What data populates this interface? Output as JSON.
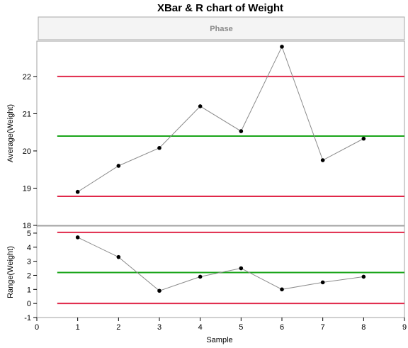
{
  "chart_data": [
    {
      "type": "line",
      "title": "XBar & R chart of Weight",
      "phase_label": "Phase",
      "xlabel": "Sample",
      "ylabel": "Average(Weight)",
      "x": [
        1,
        2,
        3,
        4,
        5,
        6,
        7,
        8
      ],
      "values": [
        18.9,
        19.6,
        20.08,
        21.2,
        20.53,
        22.8,
        19.75,
        20.33
      ],
      "xlim": [
        0,
        9
      ],
      "ylim": [
        18,
        22.95
      ],
      "x_ticks": [
        0,
        1,
        2,
        3,
        4,
        5,
        6,
        7,
        8,
        9
      ],
      "y_ticks": [
        18,
        19,
        20,
        21,
        22
      ],
      "control_limits": {
        "ucl": 22,
        "center": 20.4,
        "lcl": 18.78
      },
      "limit_colors": {
        "limit": "#e0284a",
        "center": "#1aa51a"
      },
      "line_color": "#8c8c8c",
      "marker_color": "#000000",
      "grid": false
    },
    {
      "type": "line",
      "xlabel": "Sample",
      "ylabel": "Range(Weight)",
      "x": [
        1,
        2,
        3,
        4,
        5,
        6,
        7,
        8
      ],
      "values": [
        4.7,
        3.3,
        0.9,
        1.9,
        2.5,
        1.0,
        1.5,
        1.9
      ],
      "xlim": [
        0,
        9
      ],
      "ylim": [
        -1,
        5.5
      ],
      "x_ticks": [
        0,
        1,
        2,
        3,
        4,
        5,
        6,
        7,
        8,
        9
      ],
      "y_ticks": [
        -1,
        0,
        1,
        2,
        3,
        4,
        5
      ],
      "control_limits": {
        "ucl": 5.05,
        "center": 2.2,
        "lcl": 0
      },
      "limit_colors": {
        "limit": "#e0284a",
        "center": "#1aa51a"
      },
      "line_color": "#8c8c8c",
      "marker_color": "#000000",
      "grid": false
    }
  ]
}
